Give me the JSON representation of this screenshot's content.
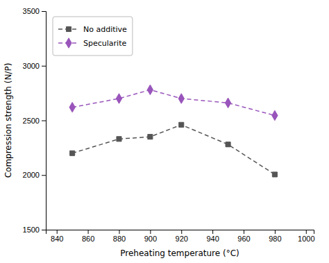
{
  "chart_data": {
    "type": "line",
    "x": [
      850,
      880,
      900,
      920,
      950,
      980
    ],
    "xlabel": "Preheating temperature (°C)",
    "ylabel": "Compression strength (N/P)",
    "series": [
      {
        "name": "No additive",
        "color": "#555555",
        "values": [
          2200,
          2330,
          2350,
          2460,
          2280,
          2005
        ],
        "marker": "square",
        "line_style": "dashed"
      },
      {
        "name": "Specularite",
        "color": "#9955bb",
        "values": [
          2620,
          2700,
          2780,
          2700,
          2660,
          2545
        ],
        "marker": "diamond",
        "line_style": "dashed"
      }
    ],
    "xlim": [
      833,
      1005
    ],
    "xticks": [
      840,
      860,
      880,
      900,
      920,
      940,
      960,
      980,
      1000
    ],
    "ylim": [
      1500,
      3500
    ],
    "yticks": [
      1500,
      2000,
      2500,
      3000,
      3500
    ],
    "grid": false,
    "legend": "upper left"
  }
}
